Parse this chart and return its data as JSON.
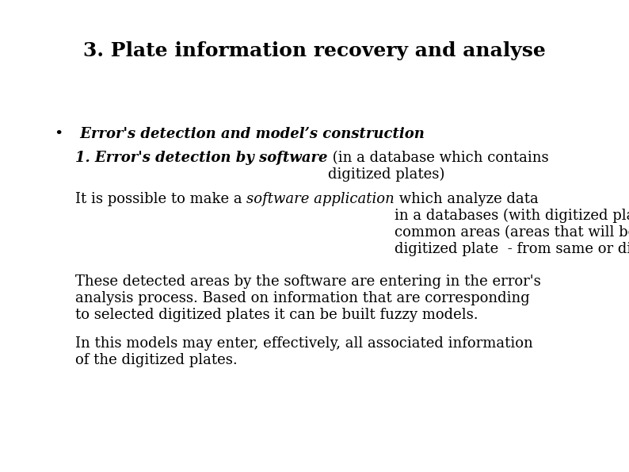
{
  "title": "3. Plate information recovery and analyse",
  "background_color": "#ffffff",
  "title_fontsize": 18,
  "body_fontsize": 13,
  "bullet_char": "•",
  "bullet_line": " Error's detection and model’s construction",
  "para1_bold": "1. Error's detection by software",
  "para1_normal": " (in a database which contains\ndigitized plates)",
  "para2_pre": "It is possible to make a ",
  "para2_italic": "software application",
  "para2_post": " which analyze data\nin a databases (with digitized plates) and to determine the\ncommon areas (areas that will be found in more then one\ndigitized plate  - from same or different observatories).",
  "para3": "These detected areas by the software are entering in the error's\nanalysis process. Based on information that are corresponding\nto selected digitized plates it can be built fuzzy models.",
  "para4": "In this models may enter, effectively, all associated information\nof the digitized plates."
}
